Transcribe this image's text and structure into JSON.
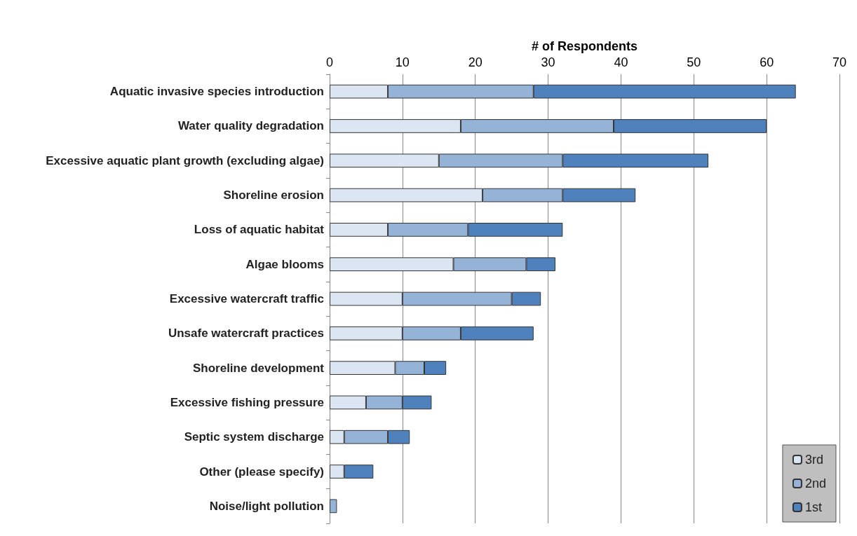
{
  "chart_data": {
    "type": "bar",
    "orientation": "horizontal",
    "stacked": true,
    "xlabel": "# of Respondents",
    "categories": [
      "Aquatic invasive species introduction",
      "Water quality degradation",
      "Excessive aquatic plant growth (excluding algae)",
      "Shoreline erosion",
      "Loss of aquatic habitat",
      "Algae blooms",
      "Excessive watercraft traffic",
      "Unsafe watercraft practices",
      "Shoreline development",
      "Excessive fishing pressure",
      "Septic system discharge",
      "Other (please specify)",
      "Noise/light pollution"
    ],
    "series": [
      {
        "name": "3rd",
        "color": "#dce6f2",
        "values": [
          8,
          18,
          15,
          21,
          8,
          17,
          10,
          10,
          9,
          5,
          2,
          2,
          0
        ]
      },
      {
        "name": "2nd",
        "color": "#95b3d7",
        "values": [
          20,
          21,
          17,
          11,
          11,
          10,
          15,
          8,
          4,
          5,
          6,
          0,
          1
        ]
      },
      {
        "name": "1st",
        "color": "#4f81bd",
        "values": [
          36,
          21,
          20,
          10,
          13,
          4,
          4,
          10,
          3,
          4,
          3,
          4,
          0
        ]
      }
    ],
    "xlim": [
      0,
      70
    ],
    "xticks": [
      0,
      10,
      20,
      30,
      40,
      50,
      60,
      70
    ],
    "grid": "x",
    "legend": "bottom right"
  }
}
